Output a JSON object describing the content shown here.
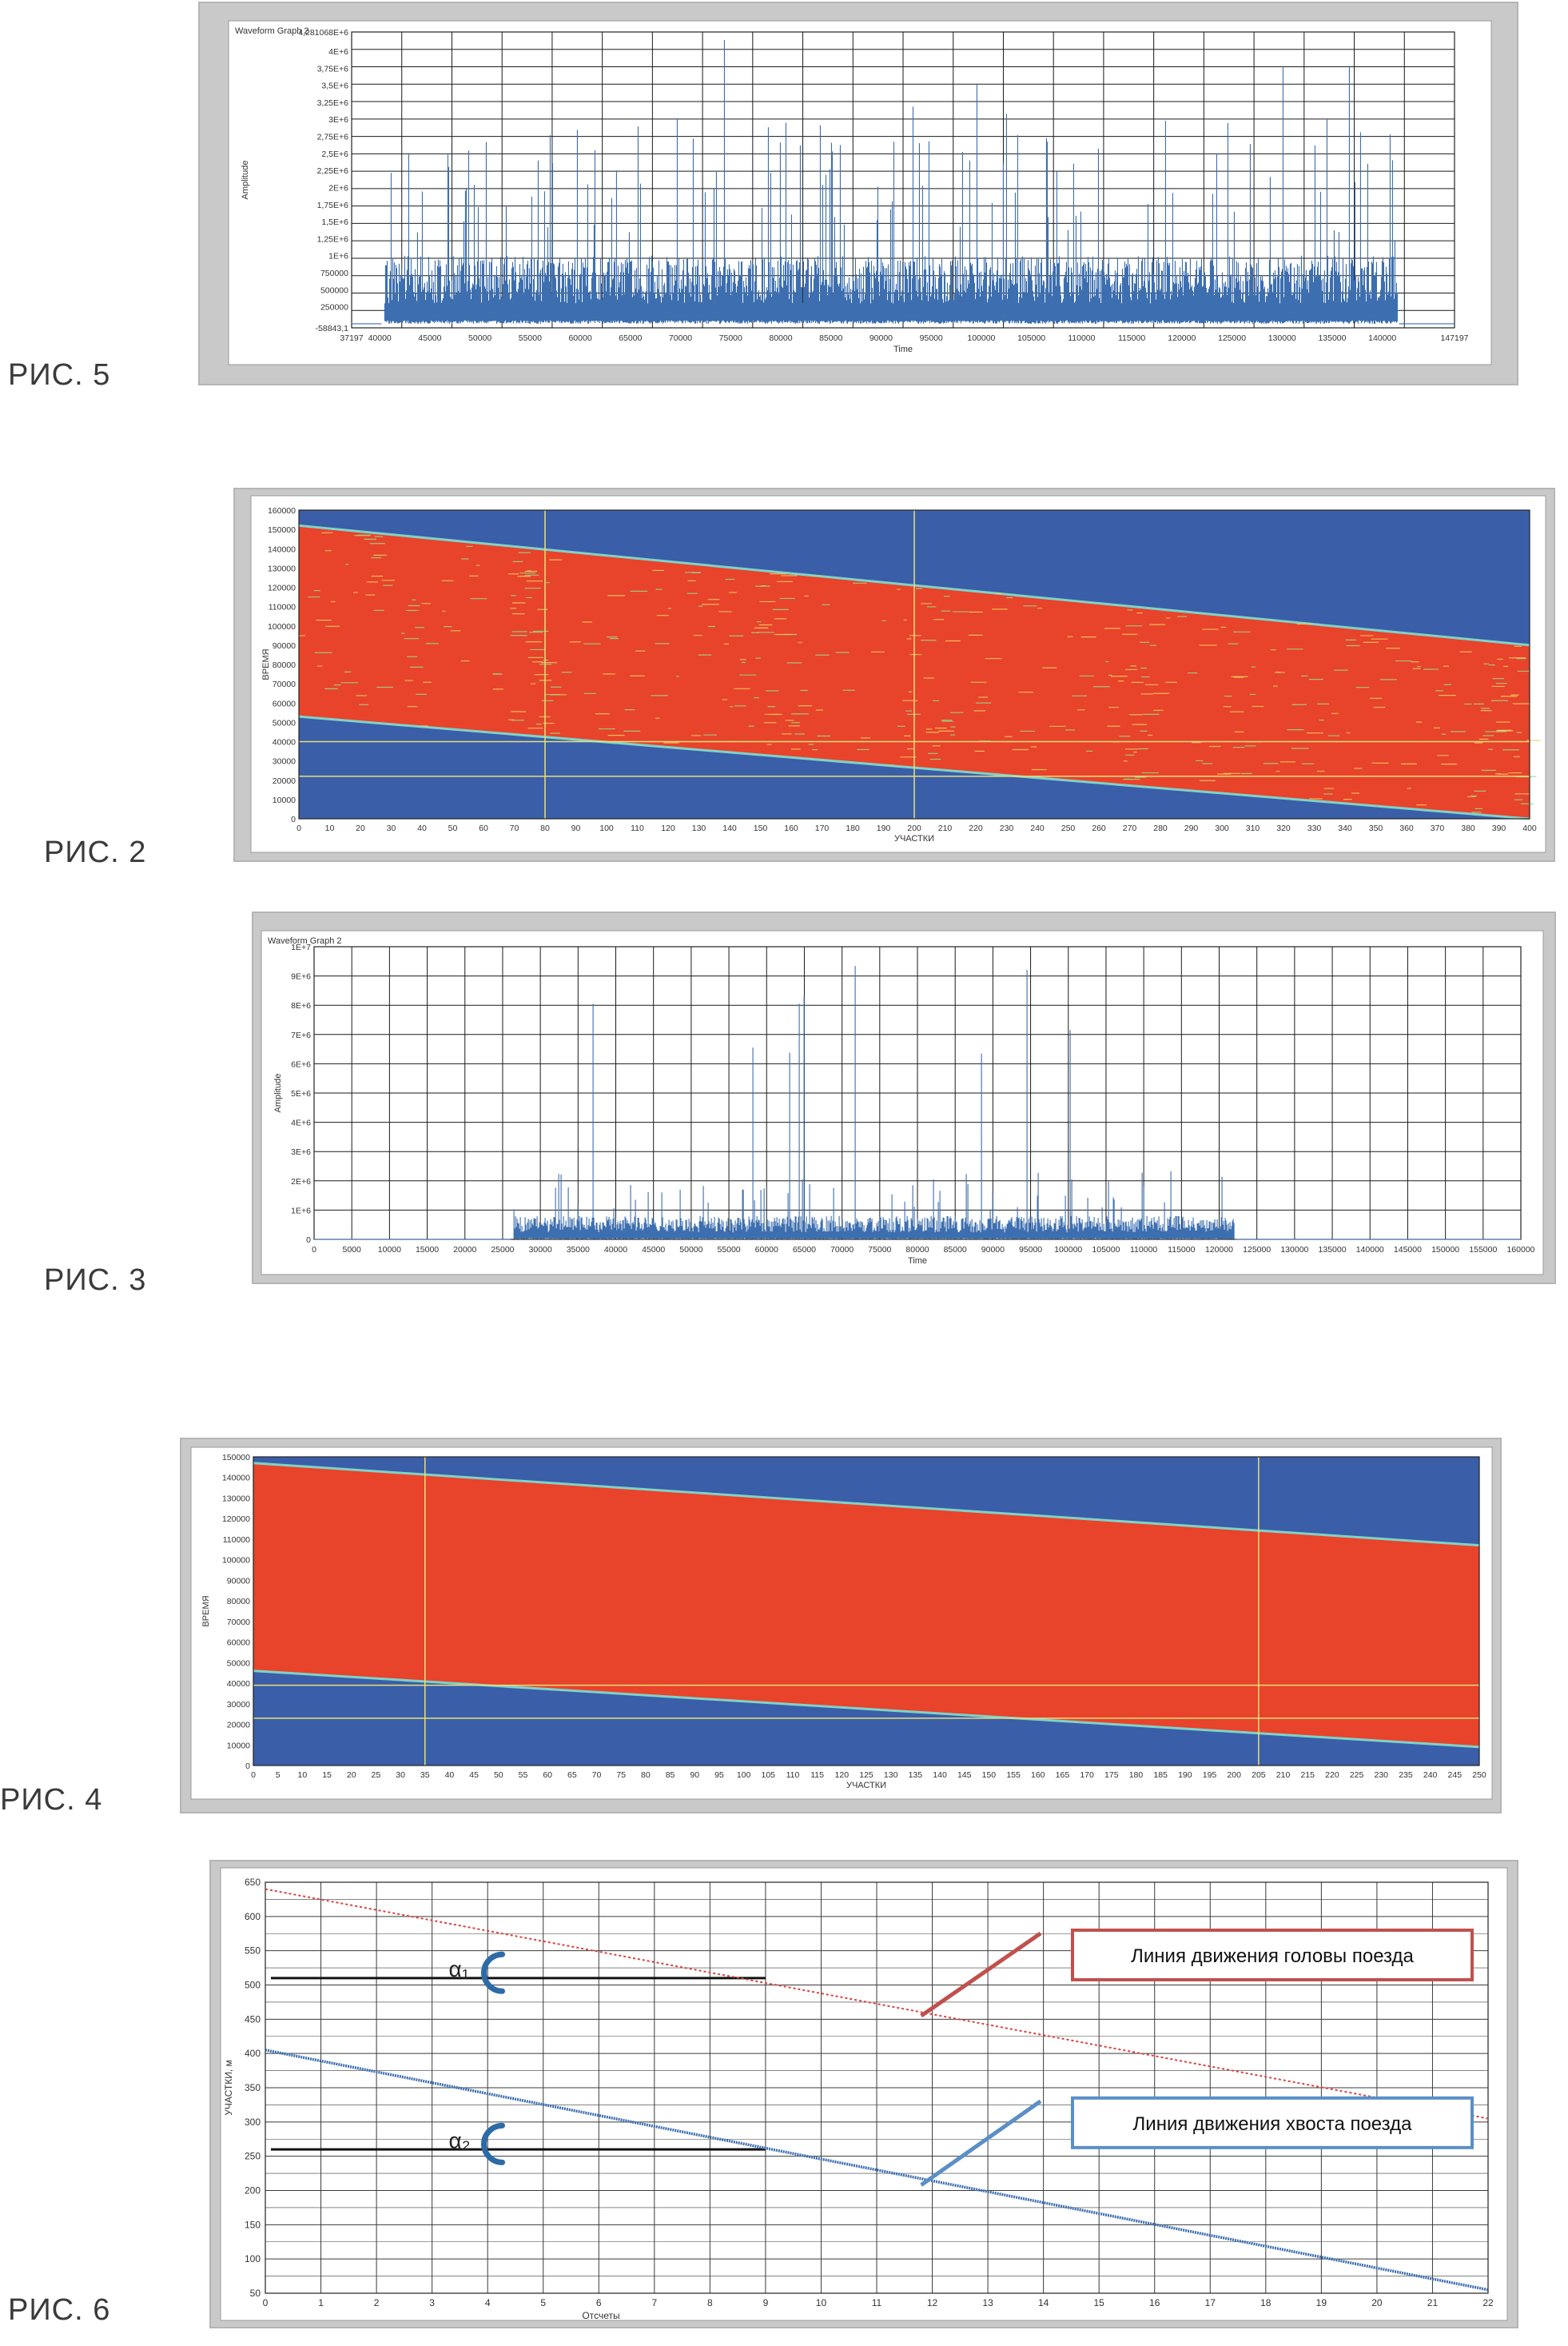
{
  "figures": {
    "fig5": {
      "label": "РИС. 5"
    },
    "fig2": {
      "label": "РИС. 2"
    },
    "fig3": {
      "label": "РИС. 3"
    },
    "fig4": {
      "label": "РИС. 4"
    },
    "fig6": {
      "label": "РИС. 6"
    }
  },
  "colors": {
    "waveform": "#3d6fb0",
    "heat_blue": "#3b5ea8",
    "heat_red": "#e8432b",
    "heat_edge": "#7fd3c8",
    "cursor": "#e8e07a",
    "head_line": "#d9433c",
    "tail_line": "#3d6fb0",
    "head_box": "#c0504d",
    "tail_box": "#5b8fc6",
    "panel": "#c9c9c9"
  },
  "chart_data": [
    {
      "id": "fig5",
      "type": "line",
      "title": "Waveform Graph 2",
      "xlabel": "Time",
      "ylabel": "Amplitude",
      "xlim": [
        37197,
        147197
      ],
      "ylim": [
        -58843.1,
        4281068
      ],
      "x_ticks": [
        "37197",
        "40000",
        "45000",
        "50000",
        "55000",
        "60000",
        "65000",
        "70000",
        "75000",
        "80000",
        "85000",
        "90000",
        "95000",
        "100000",
        "105000",
        "110000",
        "115000",
        "120000",
        "125000",
        "130000",
        "135000",
        "140000",
        "147197"
      ],
      "x_tick_values": [
        37197,
        40000,
        45000,
        50000,
        55000,
        60000,
        65000,
        70000,
        75000,
        80000,
        85000,
        90000,
        95000,
        100000,
        105000,
        110000,
        115000,
        120000,
        125000,
        130000,
        135000,
        140000,
        147197
      ],
      "y_ticks": [
        "4,281068E+6",
        "4E+6",
        "3,75E+6",
        "3,5E+6",
        "3,25E+6",
        "3E+6",
        "2,75E+6",
        "2,5E+6",
        "2,25E+6",
        "2E+6",
        "1,75E+6",
        "1,5E+6",
        "1,25E+6",
        "1E+6",
        "750000",
        "500000",
        "250000",
        "-58843,1"
      ],
      "y_tick_values": [
        4281068,
        4000000,
        3750000,
        3500000,
        3250000,
        3000000,
        2750000,
        2500000,
        2250000,
        2000000,
        1750000,
        1500000,
        1250000,
        1000000,
        750000,
        500000,
        250000,
        -58843.1
      ],
      "signal": {
        "start": 40500,
        "end": 141500,
        "typical_max": 1000000,
        "peak_max": 4200000
      },
      "grid": true
    },
    {
      "id": "fig2",
      "type": "heatmap",
      "xlabel": "УЧАСТКИ",
      "ylabel": "ВРЕМЯ",
      "xlim": [
        0,
        400
      ],
      "ylim": [
        0,
        160000
      ],
      "x_ticks": [
        "0",
        "10",
        "20",
        "30",
        "40",
        "50",
        "60",
        "70",
        "80",
        "90",
        "100",
        "110",
        "120",
        "130",
        "140",
        "150",
        "160",
        "170",
        "180",
        "190",
        "200",
        "210",
        "220",
        "230",
        "240",
        "250",
        "260",
        "270",
        "280",
        "290",
        "300",
        "310",
        "320",
        "330",
        "340",
        "350",
        "360",
        "370",
        "380",
        "390",
        "400"
      ],
      "y_ticks": [
        "160000",
        "150000",
        "140000",
        "130000",
        "120000",
        "110000",
        "100000",
        "90000",
        "80000",
        "70000",
        "60000",
        "50000",
        "40000",
        "30000",
        "20000",
        "10000",
        "0"
      ],
      "band_top": [
        [
          0,
          152000
        ],
        [
          400,
          90000
        ]
      ],
      "band_bottom": [
        [
          0,
          53000
        ],
        [
          400,
          0
        ]
      ],
      "cursor_x": [
        80,
        200
      ],
      "cursor_y": [
        40000,
        22000
      ]
    },
    {
      "id": "fig3",
      "type": "line",
      "title": "Waveform Graph 2",
      "xlabel": "Time",
      "ylabel": "Amplitude",
      "xlim": [
        0,
        160000
      ],
      "ylim": [
        0,
        10000000
      ],
      "x_ticks": [
        "0",
        "5000",
        "10000",
        "15000",
        "20000",
        "25000",
        "30000",
        "35000",
        "40000",
        "45000",
        "50000",
        "55000",
        "60000",
        "65000",
        "70000",
        "75000",
        "80000",
        "85000",
        "90000",
        "95000",
        "100000",
        "105000",
        "110000",
        "115000",
        "120000",
        "125000",
        "130000",
        "135000",
        "140000",
        "145000",
        "150000",
        "155000",
        "160000"
      ],
      "y_ticks": [
        "1E+7",
        "9E+6",
        "8E+6",
        "7E+6",
        "6E+6",
        "5E+6",
        "4E+6",
        "3E+6",
        "2E+6",
        "1E+6",
        "0"
      ],
      "y_tick_values": [
        10000000,
        9000000,
        8000000,
        7000000,
        6000000,
        5000000,
        4000000,
        3000000,
        2000000,
        1000000,
        0
      ],
      "signal": {
        "start": 26500,
        "end": 122000,
        "typical_max": 800000,
        "peak_max": 9600000
      },
      "grid": true
    },
    {
      "id": "fig4",
      "type": "heatmap",
      "xlabel": "УЧАСТКИ",
      "ylabel": "ВРЕМЯ",
      "xlim": [
        0,
        250
      ],
      "ylim": [
        0,
        150000
      ],
      "x_ticks": [
        "0",
        "5",
        "10",
        "15",
        "20",
        "25",
        "30",
        "35",
        "40",
        "45",
        "50",
        "55",
        "60",
        "65",
        "70",
        "75",
        "80",
        "85",
        "90",
        "95",
        "100",
        "105",
        "110",
        "115",
        "120",
        "125",
        "130",
        "135",
        "140",
        "145",
        "150",
        "155",
        "160",
        "165",
        "170",
        "175",
        "180",
        "185",
        "190",
        "195",
        "200",
        "205",
        "210",
        "215",
        "220",
        "225",
        "230",
        "235",
        "240",
        "245",
        "250"
      ],
      "y_ticks": [
        "150000",
        "140000",
        "130000",
        "120000",
        "110000",
        "100000",
        "90000",
        "80000",
        "70000",
        "60000",
        "50000",
        "40000",
        "30000",
        "20000",
        "10000",
        "0"
      ],
      "band_top": [
        [
          0,
          147000
        ],
        [
          250,
          107000
        ]
      ],
      "band_bottom": [
        [
          0,
          46000
        ],
        [
          250,
          9000
        ]
      ],
      "cursor_x": [
        35,
        205
      ],
      "cursor_y": [
        39000,
        23000
      ]
    },
    {
      "id": "fig6",
      "type": "line",
      "xlabel": "Отсчеты",
      "ylabel": "УЧАСТКИ, м",
      "xlim": [
        0,
        22
      ],
      "ylim": [
        50,
        650
      ],
      "x_ticks": [
        "0",
        "1",
        "2",
        "3",
        "4",
        "5",
        "6",
        "7",
        "8",
        "9",
        "10",
        "11",
        "12",
        "13",
        "14",
        "15",
        "16",
        "17",
        "18",
        "19",
        "20",
        "21",
        "22"
      ],
      "y_ticks": [
        "650",
        "600",
        "550",
        "500",
        "450",
        "400",
        "350",
        "300",
        "250",
        "200",
        "150",
        "100",
        "50"
      ],
      "series": [
        {
          "name": "Линия движения головы поезда",
          "x": [
            0,
            22
          ],
          "y": [
            640,
            305
          ]
        },
        {
          "name": "Линия движения хвоста поезда",
          "x": [
            0,
            22
          ],
          "y": [
            405,
            55
          ]
        }
      ],
      "annotations": [
        {
          "text": "α₁",
          "x": 3.3,
          "y": 512
        },
        {
          "text": "α₂",
          "x": 3.3,
          "y": 262
        }
      ],
      "reference_lines": [
        {
          "x": [
            0.1,
            9.0
          ],
          "y": 510
        },
        {
          "x": [
            0.1,
            9.0
          ],
          "y": 260
        }
      ],
      "legend": "right",
      "grid": true
    }
  ]
}
